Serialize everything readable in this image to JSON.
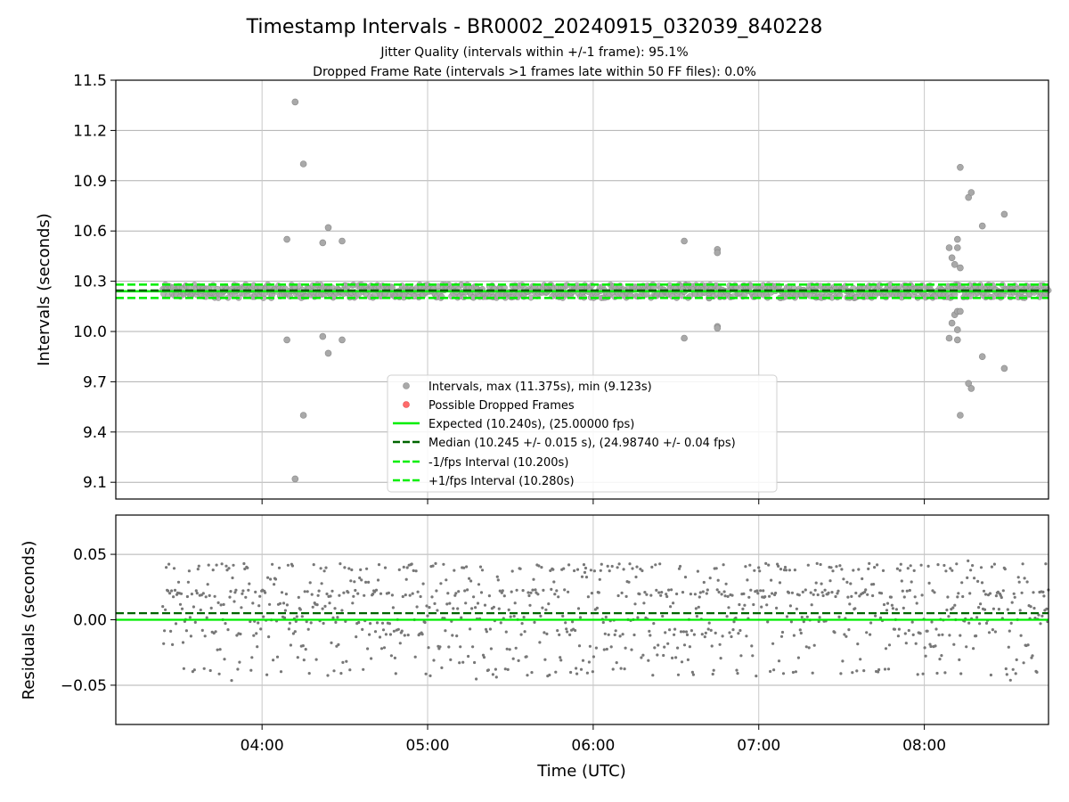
{
  "chart_data": [
    {
      "type": "scatter",
      "title": "Timestamp Intervals - BR0002_20240915_032039_840228",
      "subtitle_lines": [
        "Jitter Quality (intervals within +/-1 frame): 95.1%",
        "Dropped Frame Rate (intervals >1 frames late within 50 FF files): 0.0%"
      ],
      "xlabel": "",
      "ylabel": "Intervals (seconds)",
      "xlim": [
        "03:07",
        "08:45"
      ],
      "ylim": [
        9.0,
        11.5
      ],
      "yticks": [
        {
          "value": 9.1,
          "label": "9.1"
        },
        {
          "value": 9.4,
          "label": "9.4"
        },
        {
          "value": 9.7,
          "label": "9.7"
        },
        {
          "value": 10.0,
          "label": "10.0"
        },
        {
          "value": 10.3,
          "label": "10.3"
        },
        {
          "value": 10.6,
          "label": "10.6"
        },
        {
          "value": 10.9,
          "label": "10.9"
        },
        {
          "value": 11.2,
          "label": "11.2"
        },
        {
          "value": 11.5,
          "label": "11.5"
        }
      ],
      "xticks": [
        "04:00",
        "05:00",
        "06:00",
        "07:00",
        "08:00"
      ],
      "grid": true,
      "legend_position": "lower-center",
      "legend": [
        {
          "label": "Intervals, max (11.375s), min (9.123s)",
          "marker": "circle",
          "color": "#a9a9a9"
        },
        {
          "label": "Possible Dropped Frames",
          "marker": "circle",
          "color": "#ff6b6b"
        },
        {
          "label": "Expected (10.240s), (25.00000 fps)",
          "line": "solid",
          "color": "#00ee00"
        },
        {
          "label": "Median (10.245 +/- 0.015 s), (24.98740 +/- 0.04 fps)",
          "line": "dashed",
          "color": "#006400"
        },
        {
          "label": "-1/fps Interval (10.200s)",
          "line": "dashed",
          "color": "#00ee00"
        },
        {
          "label": "+1/fps Interval (10.280s)",
          "line": "dashed",
          "color": "#00ee00"
        }
      ],
      "reference_lines": {
        "expected": 10.24,
        "median": 10.245,
        "minus_one_fps": 10.2,
        "plus_one_fps": 10.28
      },
      "band": {
        "x_start": "03:24",
        "x_end": "08:45",
        "y_min": 10.2,
        "y_max": 10.28
      },
      "outliers": [
        {
          "x": "04:09",
          "y": 10.55
        },
        {
          "x": "04:09",
          "y": 9.95
        },
        {
          "x": "04:12",
          "y": 11.37
        },
        {
          "x": "04:12",
          "y": 9.12
        },
        {
          "x": "04:15",
          "y": 11.0
        },
        {
          "x": "04:15",
          "y": 9.5
        },
        {
          "x": "04:22",
          "y": 10.53
        },
        {
          "x": "04:22",
          "y": 9.97
        },
        {
          "x": "04:24",
          "y": 10.62
        },
        {
          "x": "04:24",
          "y": 9.87
        },
        {
          "x": "04:29",
          "y": 10.54
        },
        {
          "x": "04:29",
          "y": 9.95
        },
        {
          "x": "06:33",
          "y": 10.54
        },
        {
          "x": "06:33",
          "y": 9.96
        },
        {
          "x": "06:42",
          "y": 10.2
        },
        {
          "x": "06:45",
          "y": 10.49
        },
        {
          "x": "06:45",
          "y": 10.47
        },
        {
          "x": "06:45",
          "y": 10.03
        },
        {
          "x": "06:45",
          "y": 10.02
        },
        {
          "x": "08:09",
          "y": 10.5
        },
        {
          "x": "08:10",
          "y": 10.44
        },
        {
          "x": "08:11",
          "y": 10.4
        },
        {
          "x": "08:12",
          "y": 10.55
        },
        {
          "x": "08:12",
          "y": 10.5
        },
        {
          "x": "08:13",
          "y": 10.38
        },
        {
          "x": "08:13",
          "y": 10.98
        },
        {
          "x": "08:16",
          "y": 10.8
        },
        {
          "x": "08:17",
          "y": 10.83
        },
        {
          "x": "08:21",
          "y": 10.63
        },
        {
          "x": "08:29",
          "y": 10.7
        },
        {
          "x": "08:09",
          "y": 9.96
        },
        {
          "x": "08:10",
          "y": 10.05
        },
        {
          "x": "08:11",
          "y": 10.1
        },
        {
          "x": "08:12",
          "y": 10.01
        },
        {
          "x": "08:12",
          "y": 10.12
        },
        {
          "x": "08:13",
          "y": 10.12
        },
        {
          "x": "08:12",
          "y": 9.95
        },
        {
          "x": "08:13",
          "y": 9.5
        },
        {
          "x": "08:16",
          "y": 9.69
        },
        {
          "x": "08:17",
          "y": 9.66
        },
        {
          "x": "08:21",
          "y": 9.85
        },
        {
          "x": "08:29",
          "y": 9.78
        }
      ]
    },
    {
      "type": "scatter",
      "title": "",
      "xlabel": "Time (UTC)",
      "ylabel": "Residuals (seconds)",
      "xlim": [
        "03:07",
        "08:45"
      ],
      "ylim": [
        -0.08,
        0.08
      ],
      "yticks": [
        {
          "value": -0.05,
          "label": "−0.05"
        },
        {
          "value": 0.0,
          "label": "0.00"
        },
        {
          "value": 0.05,
          "label": "0.05"
        }
      ],
      "xticks": [
        "04:00",
        "05:00",
        "06:00",
        "07:00",
        "08:00"
      ],
      "grid": true,
      "reference_lines": {
        "zero": 0.0,
        "median_offset": 0.005
      },
      "noise_levels": [
        0.02,
        0.02,
        0.02,
        0.01,
        0.01,
        0.0,
        0.0,
        -0.01,
        -0.01,
        -0.02,
        0.03,
        -0.03,
        0.04,
        0.04,
        -0.04
      ],
      "series_start": "03:24",
      "series_end": "08:45"
    }
  ]
}
